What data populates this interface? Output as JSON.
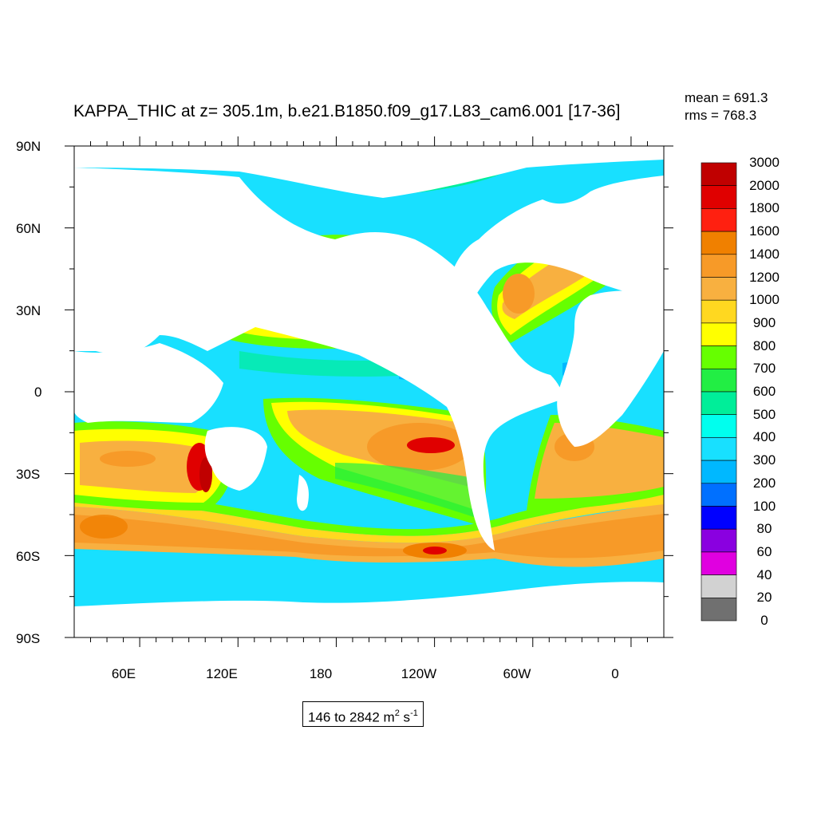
{
  "header": {
    "title": "KAPPA_THIC at z= 305.1m, b.e21.B1850.f09_g17.L83_cam6.001 [17-36]",
    "mean": "mean = 691.3",
    "rms": "rms = 768.3"
  },
  "axes": {
    "y_labels": [
      "90N",
      "60N",
      "30N",
      "0",
      "30S",
      "60S",
      "90S"
    ],
    "x_labels": [
      "60E",
      "120E",
      "180",
      "120W",
      "60W",
      "0"
    ]
  },
  "colorbar": {
    "labels": [
      "3000",
      "2000",
      "1800",
      "1600",
      "1400",
      "1200",
      "1000",
      "900",
      "800",
      "700",
      "600",
      "500",
      "400",
      "300",
      "200",
      "100",
      "80",
      "60",
      "40",
      "20",
      "0"
    ],
    "colors": [
      "#c00000",
      "#e00000",
      "#ff2010",
      "#f08000",
      "#f79a28",
      "#f8b040",
      "#ffd820",
      "#ffff00",
      "#66ff00",
      "#22ee44",
      "#00ee99",
      "#00ffee",
      "#18e0ff",
      "#00b8ff",
      "#0070ff",
      "#0000ff",
      "#8a00e0",
      "#e000e0",
      "#d2d2d2",
      "#707070"
    ]
  },
  "range": {
    "prefix": "146 to 2842 m",
    "exp1": "2",
    "mid": " s",
    "exp2": "-1"
  },
  "colors": {
    "ocean_background": "#18e0ff",
    "land": "#ffffff"
  }
}
